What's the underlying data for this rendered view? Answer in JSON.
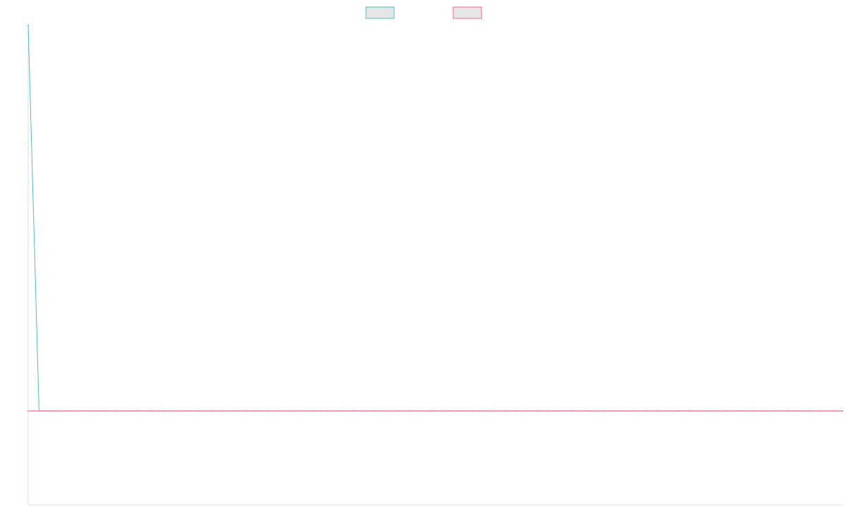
{
  "colors": {
    "series_a": "#4bc0c0",
    "series_b": "#ff6384",
    "legend_fill": "#e6e6e6",
    "axis": "#dddddd"
  },
  "chart_data": {
    "type": "line",
    "legend": {
      "placement": "top-center",
      "show_labels": false
    },
    "grid": false,
    "x": [
      0,
      1,
      2,
      3,
      4,
      5,
      6,
      7,
      8,
      9,
      10,
      11,
      12,
      13,
      14,
      15,
      16,
      17,
      18,
      19,
      20,
      21,
      22,
      23,
      24,
      25,
      26,
      27,
      28,
      29,
      30,
      31,
      32,
      33,
      34,
      35,
      36,
      37,
      38,
      39,
      40,
      41,
      42,
      43,
      44,
      45,
      46,
      47,
      48,
      49,
      50,
      51,
      52,
      53,
      54,
      55,
      56,
      57,
      58,
      59,
      60,
      61,
      62,
      63,
      64,
      65,
      66,
      67,
      68,
      69,
      70,
      71,
      72,
      73,
      74,
      75
    ],
    "xlim": [
      0,
      75
    ],
    "ylim": [
      -1,
      4.1
    ],
    "series": [
      {
        "color_key": "series_a",
        "values": [
          4.1,
          0,
          0,
          0,
          0,
          0,
          0,
          0,
          0,
          0,
          0,
          0,
          0,
          0,
          0,
          0,
          0,
          0,
          0,
          0,
          0,
          0,
          0,
          0,
          0,
          0,
          0,
          0,
          0,
          0,
          0,
          0,
          0,
          0,
          0,
          0,
          0,
          0,
          0,
          0,
          0,
          0,
          0,
          0,
          0,
          0,
          0,
          0,
          0,
          0,
          0,
          0,
          0,
          0,
          0,
          0,
          0,
          0,
          0,
          0,
          0,
          0,
          0,
          0,
          0,
          0,
          0,
          0,
          0,
          0,
          0,
          0,
          0,
          0,
          0,
          0
        ]
      },
      {
        "color_key": "series_b",
        "values": [
          0,
          0,
          0,
          0,
          0,
          0,
          0,
          0,
          0,
          0,
          0,
          0,
          0,
          0,
          0,
          0,
          0,
          0,
          0,
          0,
          0,
          0,
          0,
          0,
          0,
          0,
          0,
          0,
          0,
          0,
          0,
          0,
          0,
          0,
          0,
          0,
          0,
          0,
          0,
          0,
          0,
          0,
          0,
          0,
          0,
          0,
          0,
          0,
          0,
          0,
          0,
          0,
          0,
          0,
          0,
          0,
          0,
          0,
          0,
          0,
          0,
          0,
          0,
          0,
          0,
          0,
          0,
          0,
          0,
          0,
          0,
          0,
          0,
          0,
          0,
          0
        ]
      }
    ]
  }
}
